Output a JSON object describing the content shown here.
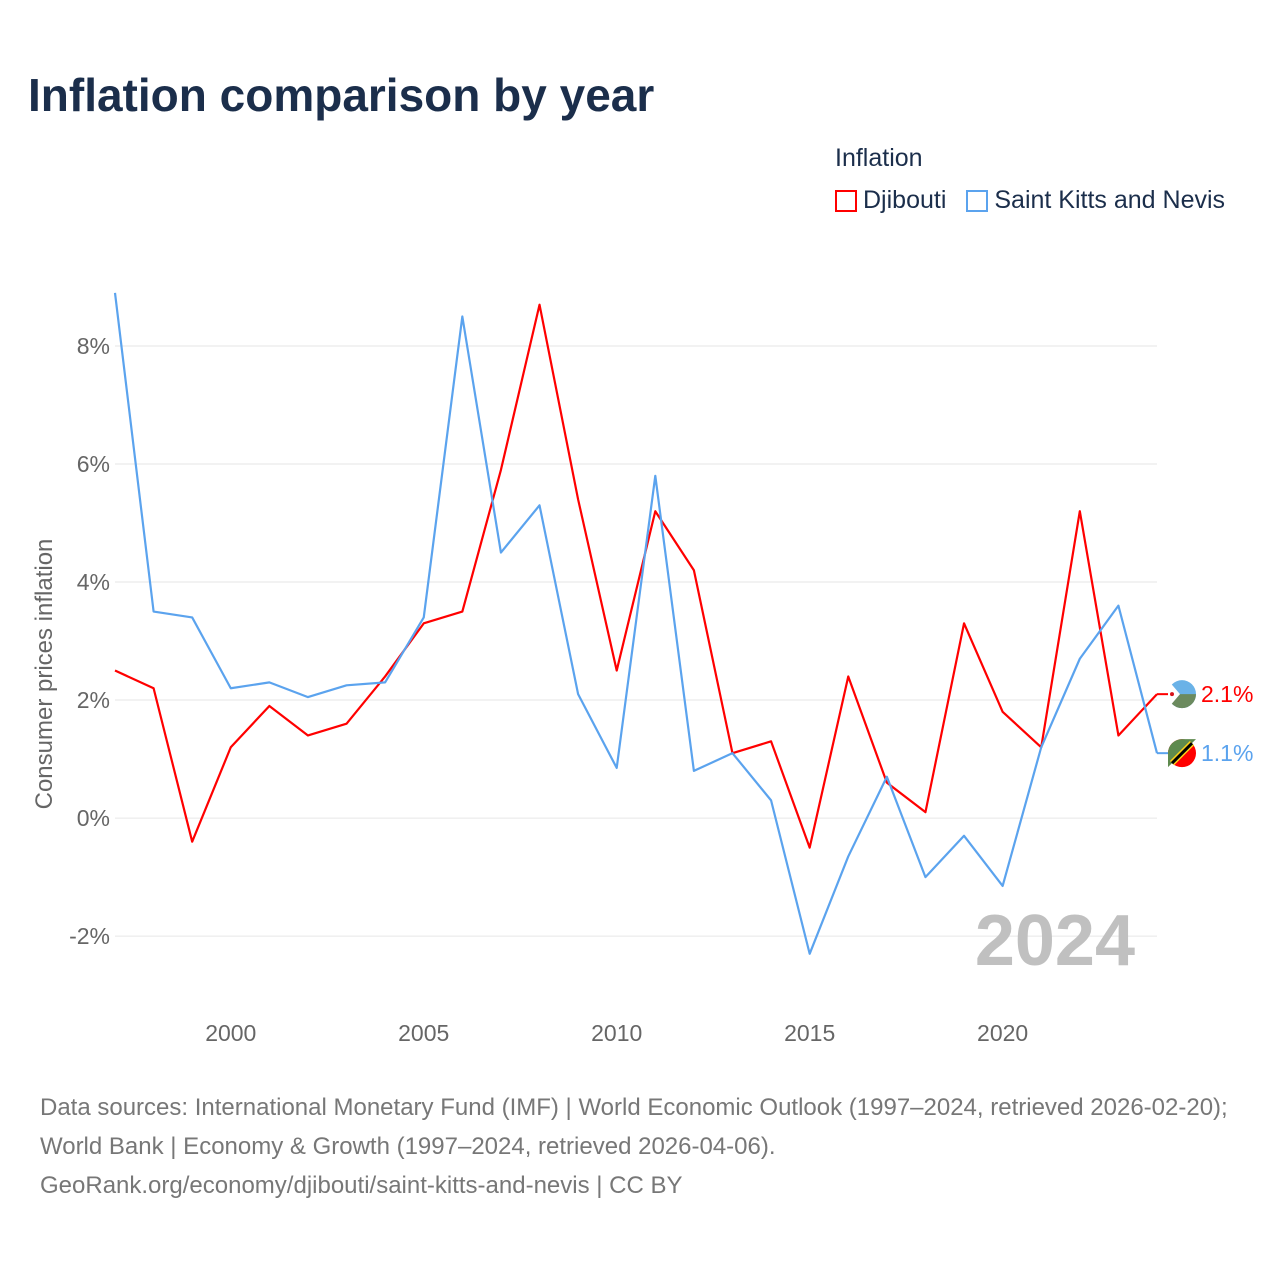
{
  "title": "Inflation comparison by year",
  "legend": {
    "title": "Inflation",
    "items": [
      {
        "label": "Djibouti",
        "color": "#ff0000"
      },
      {
        "label": "Saint Kitts and Nevis",
        "color": "#5ba3ee"
      }
    ]
  },
  "source": {
    "line1": "Data sources: International Monetary Fund (IMF) | World Economic Outlook (1997–2024, retrieved 2026-02-20); World Bank | Economy & Growth (1997–2024, retrieved 2026-04-06).",
    "line2": "GeoRank.org/economy/djibouti/saint-kitts-and-nevis | CC BY"
  },
  "chart_data": {
    "type": "line",
    "title": "Inflation comparison by year",
    "ylabel": "Consumer prices inflation",
    "xlabel": "",
    "year_label": "2024",
    "xlim": [
      1997,
      2024
    ],
    "ylim": [
      -3.1,
      9.0
    ],
    "xticks": [
      2000,
      2005,
      2010,
      2015,
      2020
    ],
    "yticks": [
      -2,
      0,
      2,
      4,
      6,
      8
    ],
    "ytick_labels": [
      "-2%",
      "0%",
      "2%",
      "4%",
      "6%",
      "8%"
    ],
    "x": [
      1997,
      1998,
      1999,
      2000,
      2001,
      2002,
      2003,
      2004,
      2005,
      2006,
      2007,
      2008,
      2009,
      2010,
      2011,
      2012,
      2013,
      2014,
      2015,
      2016,
      2017,
      2018,
      2019,
      2020,
      2021,
      2022,
      2023,
      2024
    ],
    "series": [
      {
        "name": "Djibouti",
        "color": "#ff0000",
        "end_label": "2.1%",
        "values": [
          2.5,
          2.2,
          -0.4,
          1.2,
          1.9,
          1.4,
          1.6,
          2.4,
          3.3,
          3.5,
          5.9,
          8.7,
          5.4,
          2.5,
          5.2,
          4.2,
          1.1,
          1.3,
          -0.5,
          2.4,
          0.6,
          0.1,
          3.3,
          1.8,
          1.2,
          5.2,
          1.4,
          2.1
        ]
      },
      {
        "name": "Saint Kitts and Nevis",
        "color": "#5ba3ee",
        "end_label": "1.1%",
        "values": [
          8.9,
          3.5,
          3.4,
          2.2,
          2.3,
          2.05,
          2.25,
          2.3,
          3.4,
          8.5,
          4.5,
          5.3,
          2.1,
          0.85,
          5.8,
          0.8,
          1.1,
          0.3,
          -2.3,
          -0.65,
          0.7,
          -1.0,
          -0.3,
          -1.15,
          1.2,
          2.7,
          3.6,
          1.1
        ]
      }
    ],
    "grid": true,
    "legend_position": "top-right"
  }
}
